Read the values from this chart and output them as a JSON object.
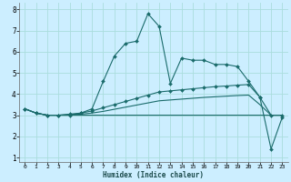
{
  "xlabel": "Humidex (Indice chaleur)",
  "ylabel": "",
  "bg_color": "#cceeff",
  "grid_color": "#aadddd",
  "line_color": "#1a6b6b",
  "xlim": [
    -0.5,
    23.5
  ],
  "ylim": [
    0.8,
    8.3
  ],
  "xticks": [
    0,
    1,
    2,
    3,
    4,
    5,
    6,
    7,
    8,
    9,
    10,
    11,
    12,
    13,
    14,
    15,
    16,
    17,
    18,
    19,
    20,
    21,
    22,
    23
  ],
  "yticks": [
    1,
    2,
    3,
    4,
    5,
    6,
    7,
    8
  ],
  "series": [
    [
      3.3,
      3.1,
      3.0,
      3.0,
      3.0,
      3.1,
      3.3,
      4.6,
      5.8,
      6.4,
      6.5,
      7.8,
      7.2,
      4.5,
      5.7,
      5.6,
      5.6,
      5.4,
      5.4,
      5.3,
      4.6,
      3.85,
      1.4,
      2.9
    ],
    [
      3.3,
      3.1,
      3.0,
      3.0,
      3.0,
      3.0,
      3.0,
      3.0,
      3.0,
      3.0,
      3.0,
      3.0,
      3.0,
      3.0,
      3.0,
      3.0,
      3.0,
      3.0,
      3.0,
      3.0,
      3.0,
      3.0,
      3.0,
      3.0
    ],
    [
      3.3,
      3.1,
      3.0,
      3.0,
      3.05,
      3.1,
      3.2,
      3.35,
      3.5,
      3.65,
      3.8,
      3.95,
      4.1,
      4.15,
      4.2,
      4.25,
      4.3,
      4.35,
      4.38,
      4.42,
      4.45,
      3.85,
      3.0,
      3.0
    ],
    [
      3.3,
      3.1,
      3.0,
      3.0,
      3.02,
      3.05,
      3.1,
      3.18,
      3.28,
      3.38,
      3.48,
      3.58,
      3.68,
      3.72,
      3.76,
      3.8,
      3.84,
      3.87,
      3.9,
      3.93,
      3.95,
      3.5,
      3.0,
      3.0
    ]
  ],
  "markers": [
    true,
    false,
    true,
    false
  ],
  "markersize": 2.0,
  "linewidth": 0.8
}
